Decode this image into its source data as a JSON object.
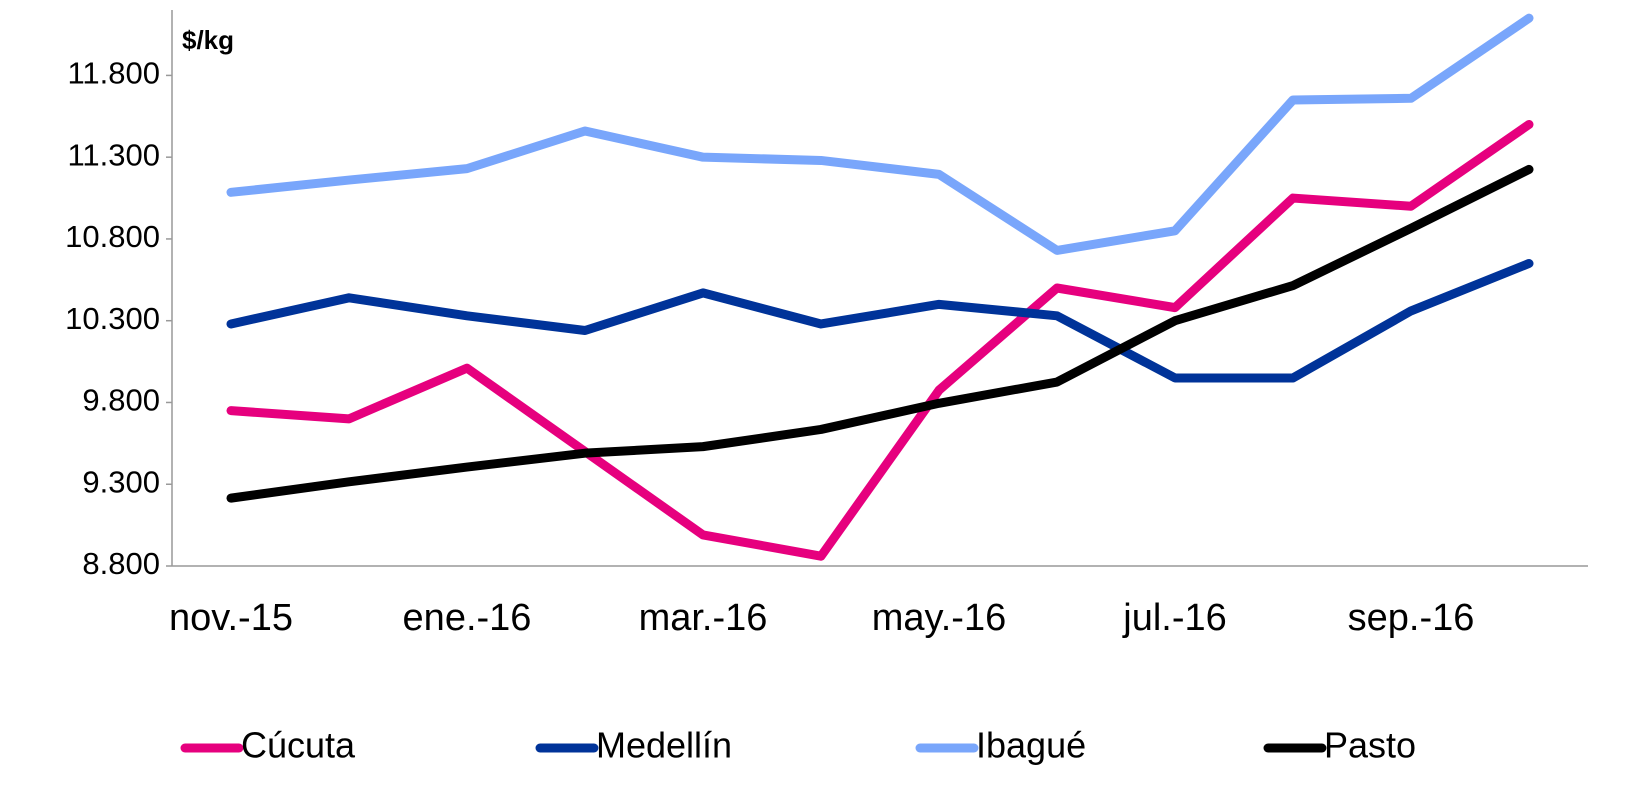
{
  "chart_data": {
    "type": "line",
    "y_axis_label": "$/kg",
    "categories": [
      "nov.-15",
      null,
      "ene.-16",
      null,
      "mar.-16",
      null,
      "may.-16",
      null,
      "jul.-16",
      null,
      "sep.-16",
      null
    ],
    "series": [
      {
        "name": "Cúcuta",
        "color": "#e6007e",
        "values": [
          9750,
          9700,
          10010,
          9500,
          8990,
          8860,
          9875,
          10500,
          10380,
          11050,
          11000,
          11500
        ]
      },
      {
        "name": "Medellín",
        "color": "#003399",
        "values": [
          10280,
          10440,
          10330,
          10240,
          10470,
          10280,
          10400,
          10330,
          9950,
          9950,
          10360,
          10650
        ]
      },
      {
        "name": "Ibagué",
        "color": "#79a6fb",
        "values": [
          11085,
          11160,
          11230,
          11460,
          11300,
          11280,
          11195,
          10730,
          10850,
          11650,
          11660,
          12150
        ]
      },
      {
        "name": "Pasto",
        "color": "#000000",
        "values": [
          9215,
          9315,
          9405,
          9490,
          9530,
          9635,
          9795,
          9925,
          10300,
          10515,
          10865,
          11225
        ]
      }
    ],
    "ylim": [
      8800,
      12200
    ],
    "yticks": [
      {
        "value": 8800,
        "label": "8.800"
      },
      {
        "value": 9300,
        "label": "9.300"
      },
      {
        "value": 9800,
        "label": "9.800"
      },
      {
        "value": 10300,
        "label": "10.300"
      },
      {
        "value": 10800,
        "label": "10.800"
      },
      {
        "value": 11300,
        "label": "11.300"
      },
      {
        "value": 11800,
        "label": "11.800"
      }
    ],
    "grid": false,
    "legend": "bottom"
  }
}
